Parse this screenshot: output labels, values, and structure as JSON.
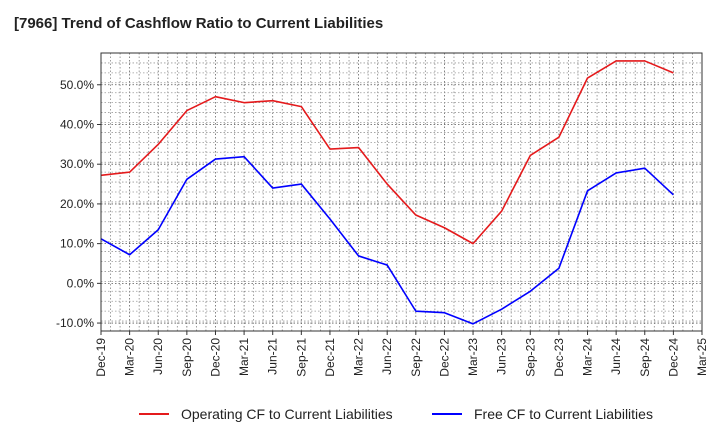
{
  "chart_data": {
    "type": "line",
    "title": "[7966]  Trend of Cashflow Ratio to Current Liabilities",
    "xlabel": "",
    "ylabel": "",
    "categories": [
      "Dec-19",
      "Mar-20",
      "Jun-20",
      "Sep-20",
      "Dec-20",
      "Mar-21",
      "Jun-21",
      "Sep-21",
      "Dec-21",
      "Mar-22",
      "Jun-22",
      "Sep-22",
      "Dec-22",
      "Mar-23",
      "Jun-23",
      "Sep-23",
      "Dec-23",
      "Mar-24",
      "Jun-24",
      "Sep-24",
      "Dec-24",
      "Mar-25"
    ],
    "ylim": [
      -12,
      58
    ],
    "yticks": [
      -10,
      0,
      10,
      20,
      30,
      40,
      50
    ],
    "ytick_labels": [
      "-10.0%",
      "0.0%",
      "10.0%",
      "20.0%",
      "30.0%",
      "40.0%",
      "50.0%"
    ],
    "grid": true,
    "legend_position": "bottom",
    "series": [
      {
        "name": "Operating CF to Current Liabilities",
        "color": "#e41a1c",
        "values": [
          27.2,
          28.0,
          35.0,
          43.5,
          47.0,
          45.5,
          46.0,
          44.5,
          33.8,
          34.2,
          25.0,
          17.2,
          14.0,
          10.0,
          18.2,
          32.2,
          36.8,
          51.7,
          56.0,
          56.0,
          53.0,
          null
        ]
      },
      {
        "name": "Free CF to Current Liabilities",
        "color": "#0000ff",
        "values": [
          11.2,
          7.2,
          13.5,
          26.2,
          31.3,
          31.9,
          24.0,
          25.0,
          16.2,
          6.9,
          4.6,
          -7.0,
          -7.4,
          -10.2,
          -6.5,
          -2.0,
          3.8,
          23.3,
          27.8,
          29.0,
          22.3,
          null
        ]
      }
    ]
  }
}
